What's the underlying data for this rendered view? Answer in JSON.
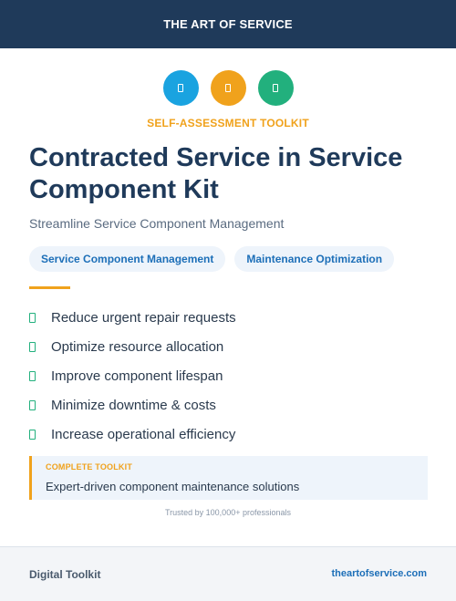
{
  "header": {
    "brand": "THE ART OF SERVICE"
  },
  "icons": [
    {
      "name": "clipboard-icon",
      "color": "#1aa3e0"
    },
    {
      "name": "document-icon",
      "color": "#f0a21c"
    },
    {
      "name": "file-icon",
      "color": "#22b07d"
    }
  ],
  "kicker": "SELF-ASSESSMENT TOOLKIT",
  "title": "Contracted Service in Service Component Kit",
  "subtitle": "Streamline Service Component Management",
  "tags": [
    "Service Component Management",
    "Maintenance Optimization"
  ],
  "benefits": [
    "Reduce urgent repair requests",
    "Optimize resource allocation",
    "Improve component lifespan",
    "Minimize downtime & costs",
    "Increase operational efficiency"
  ],
  "callout": {
    "label": "COMPLETE TOOLKIT",
    "text": "Expert-driven component maintenance solutions"
  },
  "trust": "Trusted by 100,000+ professionals",
  "footer": {
    "left": "Digital Toolkit",
    "right": "theartofservice.com"
  },
  "colors": {
    "navy": "#1f3a5a",
    "accent_orange": "#f0a21c",
    "accent_blue": "#1d6fb8",
    "accent_green": "#22b07d"
  }
}
